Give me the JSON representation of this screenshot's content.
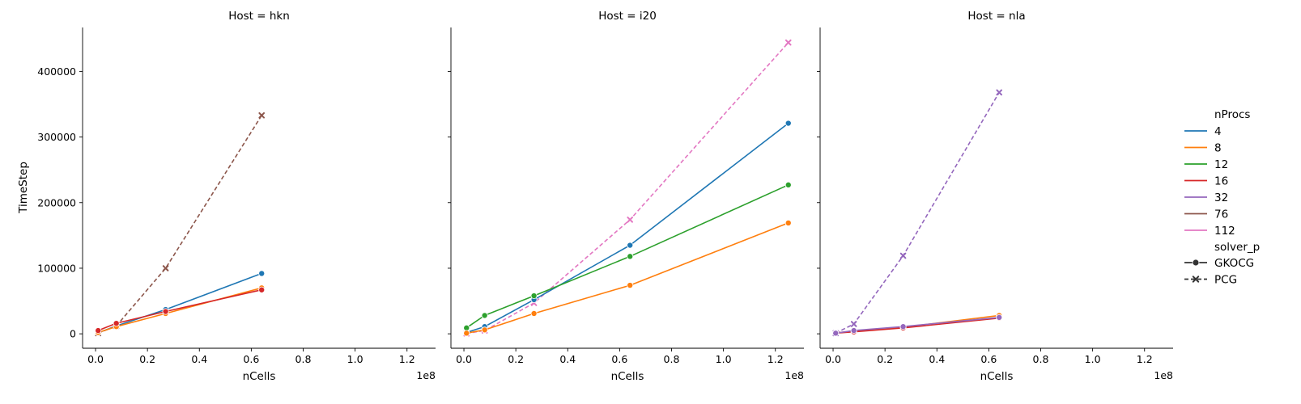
{
  "chart_data": {
    "type": "line",
    "xlabel": "nCells",
    "ylabel": "TimeStep",
    "x_offset_label": "1e8",
    "x_scale": 100000000,
    "xlim": [
      -0.05,
      1.31
    ],
    "ylim": [
      -22000,
      467000
    ],
    "xticks": [
      0.0,
      0.2,
      0.4,
      0.6,
      0.8,
      1.0,
      1.2
    ],
    "xtick_labels": [
      "0.0",
      "0.2",
      "0.4",
      "0.6",
      "0.8",
      "1.0",
      "1.2"
    ],
    "yticks": [
      0,
      100000,
      200000,
      300000,
      400000
    ],
    "ytick_labels": [
      "0",
      "100000",
      "200000",
      "300000",
      "400000"
    ],
    "hue_title": "nProcs",
    "style_title": "solver_p",
    "hue_levels": [
      {
        "label": "4",
        "color": "#1f77b4"
      },
      {
        "label": "8",
        "color": "#ff7f0e"
      },
      {
        "label": "12",
        "color": "#2ca02c"
      },
      {
        "label": "16",
        "color": "#d62728"
      },
      {
        "label": "32",
        "color": "#9467bd"
      },
      {
        "label": "76",
        "color": "#8c564b"
      },
      {
        "label": "112",
        "color": "#e377c2"
      }
    ],
    "style_levels": [
      {
        "label": "GKOCG",
        "dash": "solid",
        "marker": "circle"
      },
      {
        "label": "PCG",
        "dash": "dashed",
        "marker": "x"
      }
    ],
    "panels": [
      {
        "title": "Host = hkn",
        "series": [
          {
            "hue": "76",
            "style": "PCG",
            "x": [
              0.01,
              0.08,
              0.27,
              0.64
            ],
            "y": [
              1000,
              12000,
              100000,
              333000
            ]
          },
          {
            "hue": "4",
            "style": "GKOCG",
            "x": [
              0.01,
              0.08,
              0.27,
              0.64
            ],
            "y": [
              1500,
              12000,
              37000,
              92000
            ]
          },
          {
            "hue": "8",
            "style": "GKOCG",
            "x": [
              0.01,
              0.08,
              0.27,
              0.64
            ],
            "y": [
              2000,
              11000,
              31000,
              70000
            ]
          },
          {
            "hue": "16",
            "style": "GKOCG",
            "x": [
              0.01,
              0.08,
              0.27,
              0.64
            ],
            "y": [
              5000,
              16000,
              34000,
              67000
            ]
          }
        ]
      },
      {
        "title": "Host = i20",
        "series": [
          {
            "hue": "112",
            "style": "PCG",
            "x": [
              0.01,
              0.08,
              0.27,
              0.64,
              1.25
            ],
            "y": [
              500,
              5000,
              47000,
              174000,
              444000
            ]
          },
          {
            "hue": "4",
            "style": "GKOCG",
            "x": [
              0.01,
              0.08,
              0.27,
              0.64,
              1.25
            ],
            "y": [
              2000,
              11000,
              52000,
              135000,
              321000
            ]
          },
          {
            "hue": "12",
            "style": "GKOCG",
            "x": [
              0.01,
              0.08,
              0.27,
              0.64,
              1.25
            ],
            "y": [
              9000,
              28000,
              58000,
              118000,
              227000
            ]
          },
          {
            "hue": "8",
            "style": "GKOCG",
            "x": [
              0.01,
              0.08,
              0.27,
              0.64,
              1.25
            ],
            "y": [
              1000,
              6000,
              31000,
              74000,
              169000
            ]
          }
        ]
      },
      {
        "title": "Host = nla",
        "series": [
          {
            "hue": "32",
            "style": "PCG",
            "x": [
              0.01,
              0.08,
              0.27,
              0.64
            ],
            "y": [
              1000,
              15000,
              119000,
              368000
            ]
          },
          {
            "hue": "8",
            "style": "GKOCG",
            "x": [
              0.01,
              0.08,
              0.27,
              0.64
            ],
            "y": [
              1500,
              4000,
              10000,
              28000
            ]
          },
          {
            "hue": "16",
            "style": "GKOCG",
            "x": [
              0.01,
              0.08,
              0.27,
              0.64
            ],
            "y": [
              1000,
              3000,
              9000,
              24000
            ]
          },
          {
            "hue": "32",
            "style": "GKOCG",
            "x": [
              0.01,
              0.08,
              0.27,
              0.64
            ],
            "y": [
              1000,
              5000,
              11000,
              25000
            ]
          }
        ]
      }
    ]
  }
}
